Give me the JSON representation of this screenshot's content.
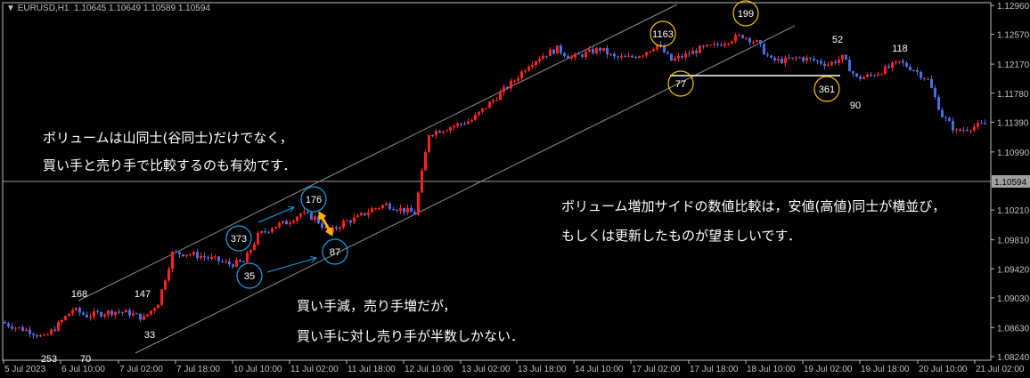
{
  "header": {
    "symbol": "EURUSD,H1",
    "ohlc": "1.10645 1.10649 1.10589 1.10594"
  },
  "chart_data": {
    "type": "candlestick",
    "timeframe": "H1",
    "sampled_closes_every_4_bars": [
      1.08706,
      1.08634,
      1.08586,
      1.08491,
      1.0867,
      1.08873,
      1.08789,
      1.08825,
      1.08849,
      1.08825,
      1.08754,
      1.08969,
      1.09626,
      1.09626,
      1.0959,
      1.09542,
      1.09483,
      1.09506,
      1.09865,
      1.09984,
      1.10044,
      1.10164,
      1.10104,
      1.09901,
      1.10044,
      1.10104,
      1.10223,
      1.10283,
      1.10223,
      1.10164,
      1.11239,
      1.11299,
      1.11359,
      1.11418,
      1.11598,
      1.11777,
      1.11956,
      1.12171,
      1.12291,
      1.12374,
      1.12255,
      1.12315,
      1.12374,
      1.12255,
      1.12255,
      1.12315,
      1.12434,
      1.12219,
      1.12291,
      1.12374,
      1.1241,
      1.12494,
      1.12554,
      1.12458,
      1.12219,
      1.12219,
      1.12255,
      1.12219,
      1.12171,
      1.12255,
      1.1198,
      1.12016,
      1.121,
      1.12195,
      1.121,
      1.11956,
      1.11478,
      1.11263,
      1.11323,
      1.11359
    ],
    "ylim": [
      1.0824,
      1.1296
    ],
    "y_ticks": [
      "1.12960",
      "1.12570",
      "1.12170",
      "1.11780",
      "1.11390",
      "1.10990",
      "1.10210",
      "1.09810",
      "1.09420",
      "1.09030",
      "1.08630",
      "1.08240"
    ],
    "current_price": "1.10594",
    "x_ticks": [
      "5 Jul 2023",
      "6 Jul 10:00",
      "7 Jul 02:00",
      "7 Jul 18:00",
      "10 Jul 10:00",
      "11 Jul 02:00",
      "11 Jul 18:00",
      "12 Jul 10:00",
      "13 Jul 02:00",
      "13 Jul 18:00",
      "14 Jul 10:00",
      "17 Jul 02:00",
      "17 Jul 18:00",
      "18 Jul 10:00",
      "19 Jul 02:00",
      "19 Jul 18:00",
      "20 Jul 10:00",
      "21 Jul 02:00"
    ],
    "colors": {
      "up": "#ff2020",
      "down": "#4a6ce0",
      "background": "#000000",
      "axis": "#c0c0c0",
      "blue_marker": "#1aa0e8",
      "yellow_marker": "#ffc000",
      "arrow_orange": "#ffb000"
    },
    "volume_labels_plain": [
      "168",
      "147",
      "33",
      "253",
      "70",
      "52",
      "90",
      "118"
    ],
    "volume_labels_blue_circle": [
      "176",
      "373",
      "35",
      "87"
    ],
    "volume_labels_yellow_circle": [
      "1163",
      "199",
      "77",
      "361"
    ]
  },
  "notes": {
    "left_1": "ボリュームは山同士(谷同士)だけでなく，",
    "left_2": "買い手と売り手で比較するのも有効です．",
    "right_1": "ボリューム増加サイドの数値比較は，安値(高値)同士が横並び，",
    "right_2": "もしくは更新したものが望ましいです．",
    "mid_1": "買い手減，売り手増だが，",
    "mid_2": "買い手に対し売り手が半数しかない．"
  }
}
